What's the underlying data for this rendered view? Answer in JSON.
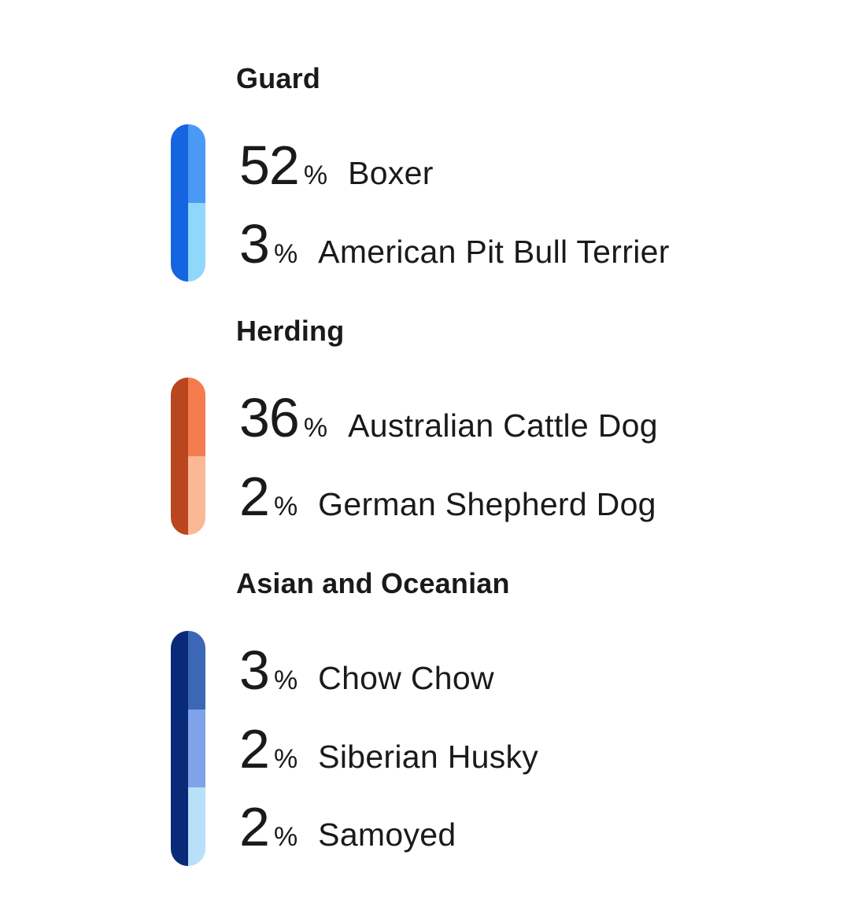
{
  "groups": [
    {
      "title": "Guard",
      "colors": {
        "bar": "#1565e0",
        "segments": [
          "#4a9af5",
          "#8fd8fb"
        ]
      },
      "breeds": [
        {
          "percent": "52",
          "sign": "%",
          "name": "Boxer"
        },
        {
          "percent": "3",
          "sign": "%",
          "name": "American Pit Bull Terrier"
        }
      ]
    },
    {
      "title": "Herding",
      "colors": {
        "bar": "#b9461f",
        "segments": [
          "#f47c4f",
          "#fbb894"
        ]
      },
      "breeds": [
        {
          "percent": "36",
          "sign": "%",
          "name": "Australian Cattle Dog"
        },
        {
          "percent": "2",
          "sign": "%",
          "name": "German Shepherd Dog"
        }
      ]
    },
    {
      "title": "Asian and Oceanian",
      "colors": {
        "bar": "#082a78",
        "segments": [
          "#3c66b6",
          "#7ea3e8",
          "#b8e0f8"
        ]
      },
      "breeds": [
        {
          "percent": "3",
          "sign": "%",
          "name": "Chow Chow"
        },
        {
          "percent": "2",
          "sign": "%",
          "name": "Siberian Husky"
        },
        {
          "percent": "2",
          "sign": "%",
          "name": "Samoyed"
        }
      ]
    }
  ]
}
